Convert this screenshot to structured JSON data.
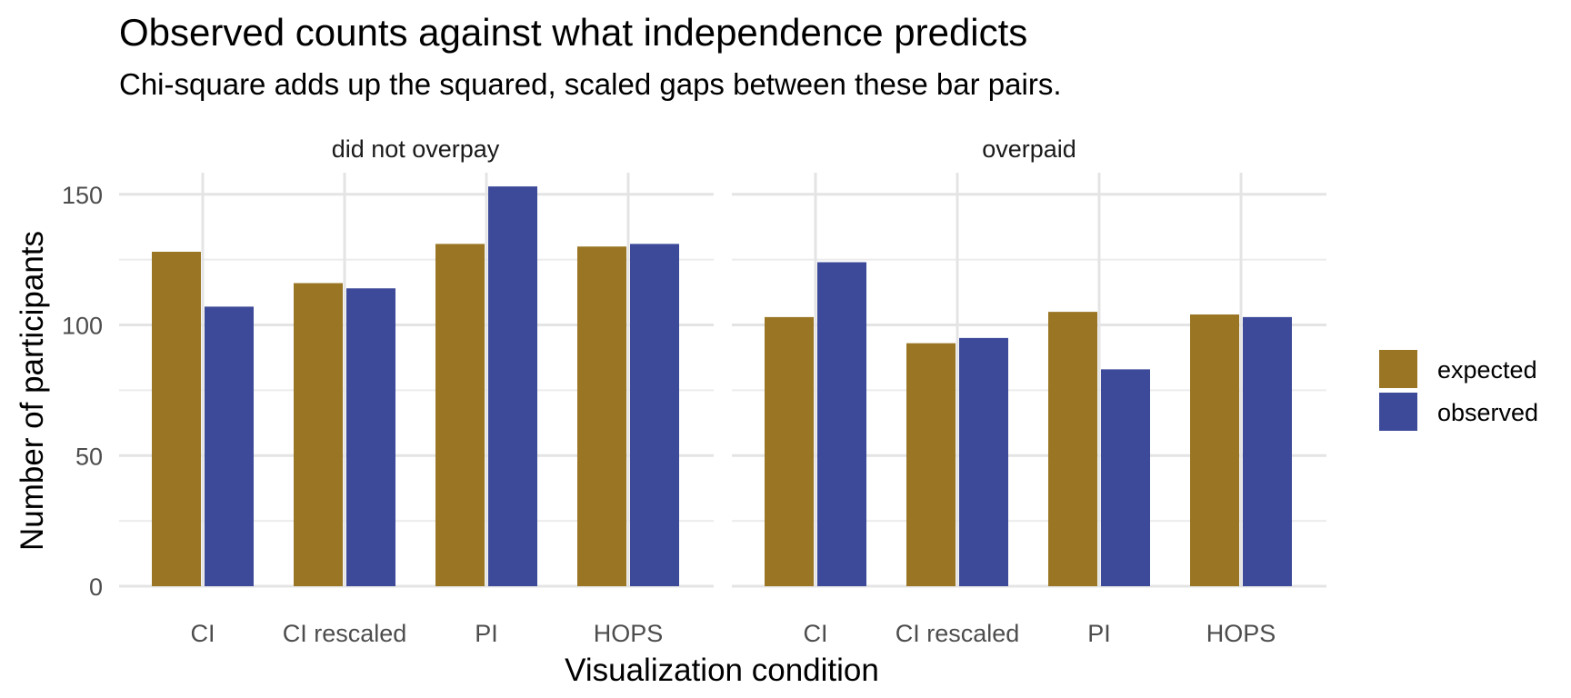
{
  "chart_data": {
    "type": "bar",
    "title": "Observed counts against what independence predicts",
    "subtitle": "Chi-square adds up the squared, scaled gaps between these bar pairs.",
    "xlabel": "Visualization condition",
    "ylabel": "Number of participants",
    "ylim": [
      0,
      160
    ],
    "yticks": [
      "0",
      "50",
      "100",
      "150"
    ],
    "ytick_values": [
      0,
      50,
      100,
      150
    ],
    "grid": true,
    "legend_position": "right",
    "categories": [
      "CI",
      "CI rescaled",
      "PI",
      "HOPS"
    ],
    "facets": [
      {
        "label": "did not overpay",
        "series": [
          {
            "name": "expected",
            "values": [
              128,
              116,
              131,
              130
            ]
          },
          {
            "name": "observed",
            "values": [
              107,
              114,
              153,
              131
            ]
          }
        ]
      },
      {
        "label": "overpaid",
        "series": [
          {
            "name": "expected",
            "values": [
              103,
              93,
              105,
              104
            ]
          },
          {
            "name": "observed",
            "values": [
              124,
              95,
              83,
              103
            ]
          }
        ]
      }
    ],
    "series_colors": {
      "expected": "#9a7624",
      "observed": "#3d4a99"
    },
    "legend": [
      "expected",
      "observed"
    ]
  }
}
